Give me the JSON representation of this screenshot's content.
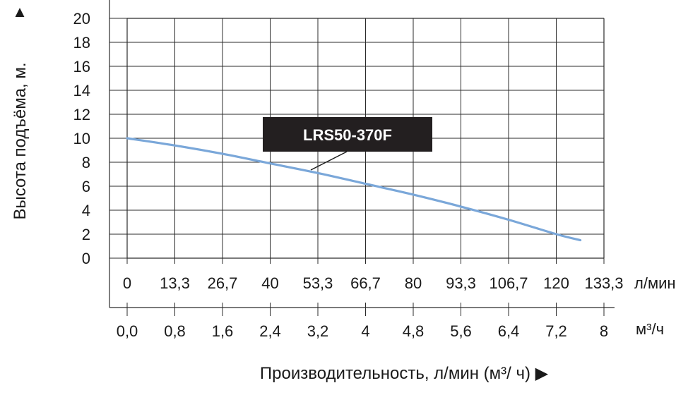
{
  "chart_data": {
    "type": "line",
    "ylabel": "Высота подъёма, м.",
    "y_ticks": [
      "0",
      "2",
      "4",
      "6",
      "8",
      "10",
      "12",
      "14",
      "16",
      "18",
      "20"
    ],
    "ylim": [
      0,
      20
    ],
    "x_ticks_lmin": [
      "0",
      "13,3",
      "26,7",
      "40",
      "53,3",
      "66,7",
      "80",
      "93,3",
      "106,7",
      "120",
      "133,3"
    ],
    "x_unit_lmin": "л/мин",
    "x_ticks_m3h": [
      "0,0",
      "0,8",
      "1,6",
      "2,4",
      "3,2",
      "4",
      "4,8",
      "5,6",
      "6,4",
      "7,2",
      "8"
    ],
    "x_unit_m3h": "м³/ч",
    "xlim_lmin": [
      0,
      133.3
    ],
    "xlabel": "Производительность, л/мин (м³/ ч) ▶",
    "y_arrow": "▲",
    "grid": true,
    "series": [
      {
        "name": "LRS50-370F",
        "color": "#7aa7d9",
        "x": [
          0,
          13.3,
          26.7,
          40,
          53.3,
          66.7,
          80,
          93.3,
          106.7,
          120,
          126.7
        ],
        "y": [
          10.0,
          9.4,
          8.7,
          7.9,
          7.1,
          6.2,
          5.3,
          4.3,
          3.2,
          2.0,
          1.5
        ]
      }
    ]
  }
}
